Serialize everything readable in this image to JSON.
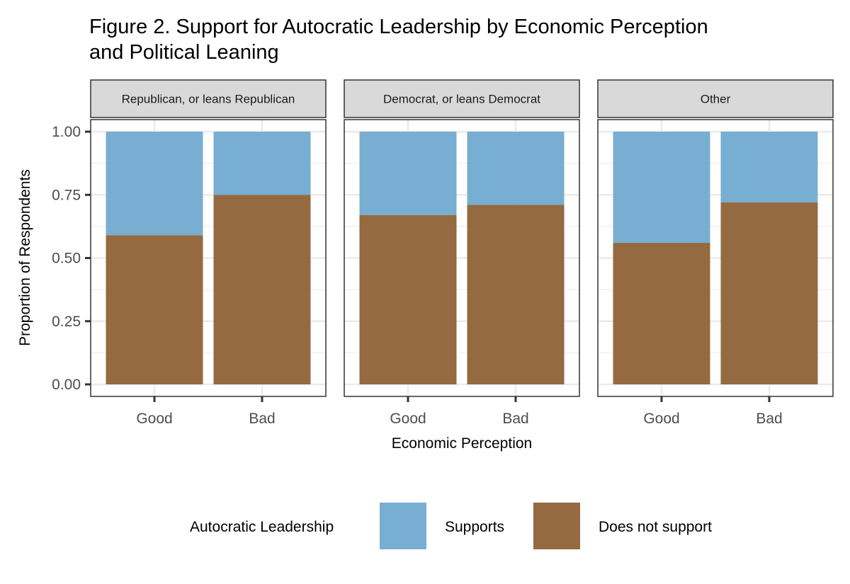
{
  "chart_data": {
    "type": "bar",
    "stacked": true,
    "title_lines": [
      "Figure 2. Support for Autocratic Leadership by Economic Perception",
      "and Political Leaning"
    ],
    "xlabel": "Economic Perception",
    "ylabel": "Proportion of Respondents",
    "ylim": [
      0,
      1
    ],
    "yticks": [
      "0.00",
      "0.25",
      "0.50",
      "0.75",
      "1.00"
    ],
    "categories": [
      "Good",
      "Bad"
    ],
    "facets": [
      {
        "label": "Republican, or leans Republican",
        "does_not_support": [
          0.59,
          0.75
        ]
      },
      {
        "label": "Democrat, or leans Democrat",
        "does_not_support": [
          0.67,
          0.71
        ]
      },
      {
        "label": "Other",
        "does_not_support": [
          0.56,
          0.72
        ]
      }
    ],
    "legend": {
      "title": "Autocratic Leadership",
      "position": "bottom",
      "items": [
        {
          "name": "Supports",
          "color": "#78aed2"
        },
        {
          "name": "Does not support",
          "color": "#956a40"
        }
      ]
    },
    "grid": true
  }
}
